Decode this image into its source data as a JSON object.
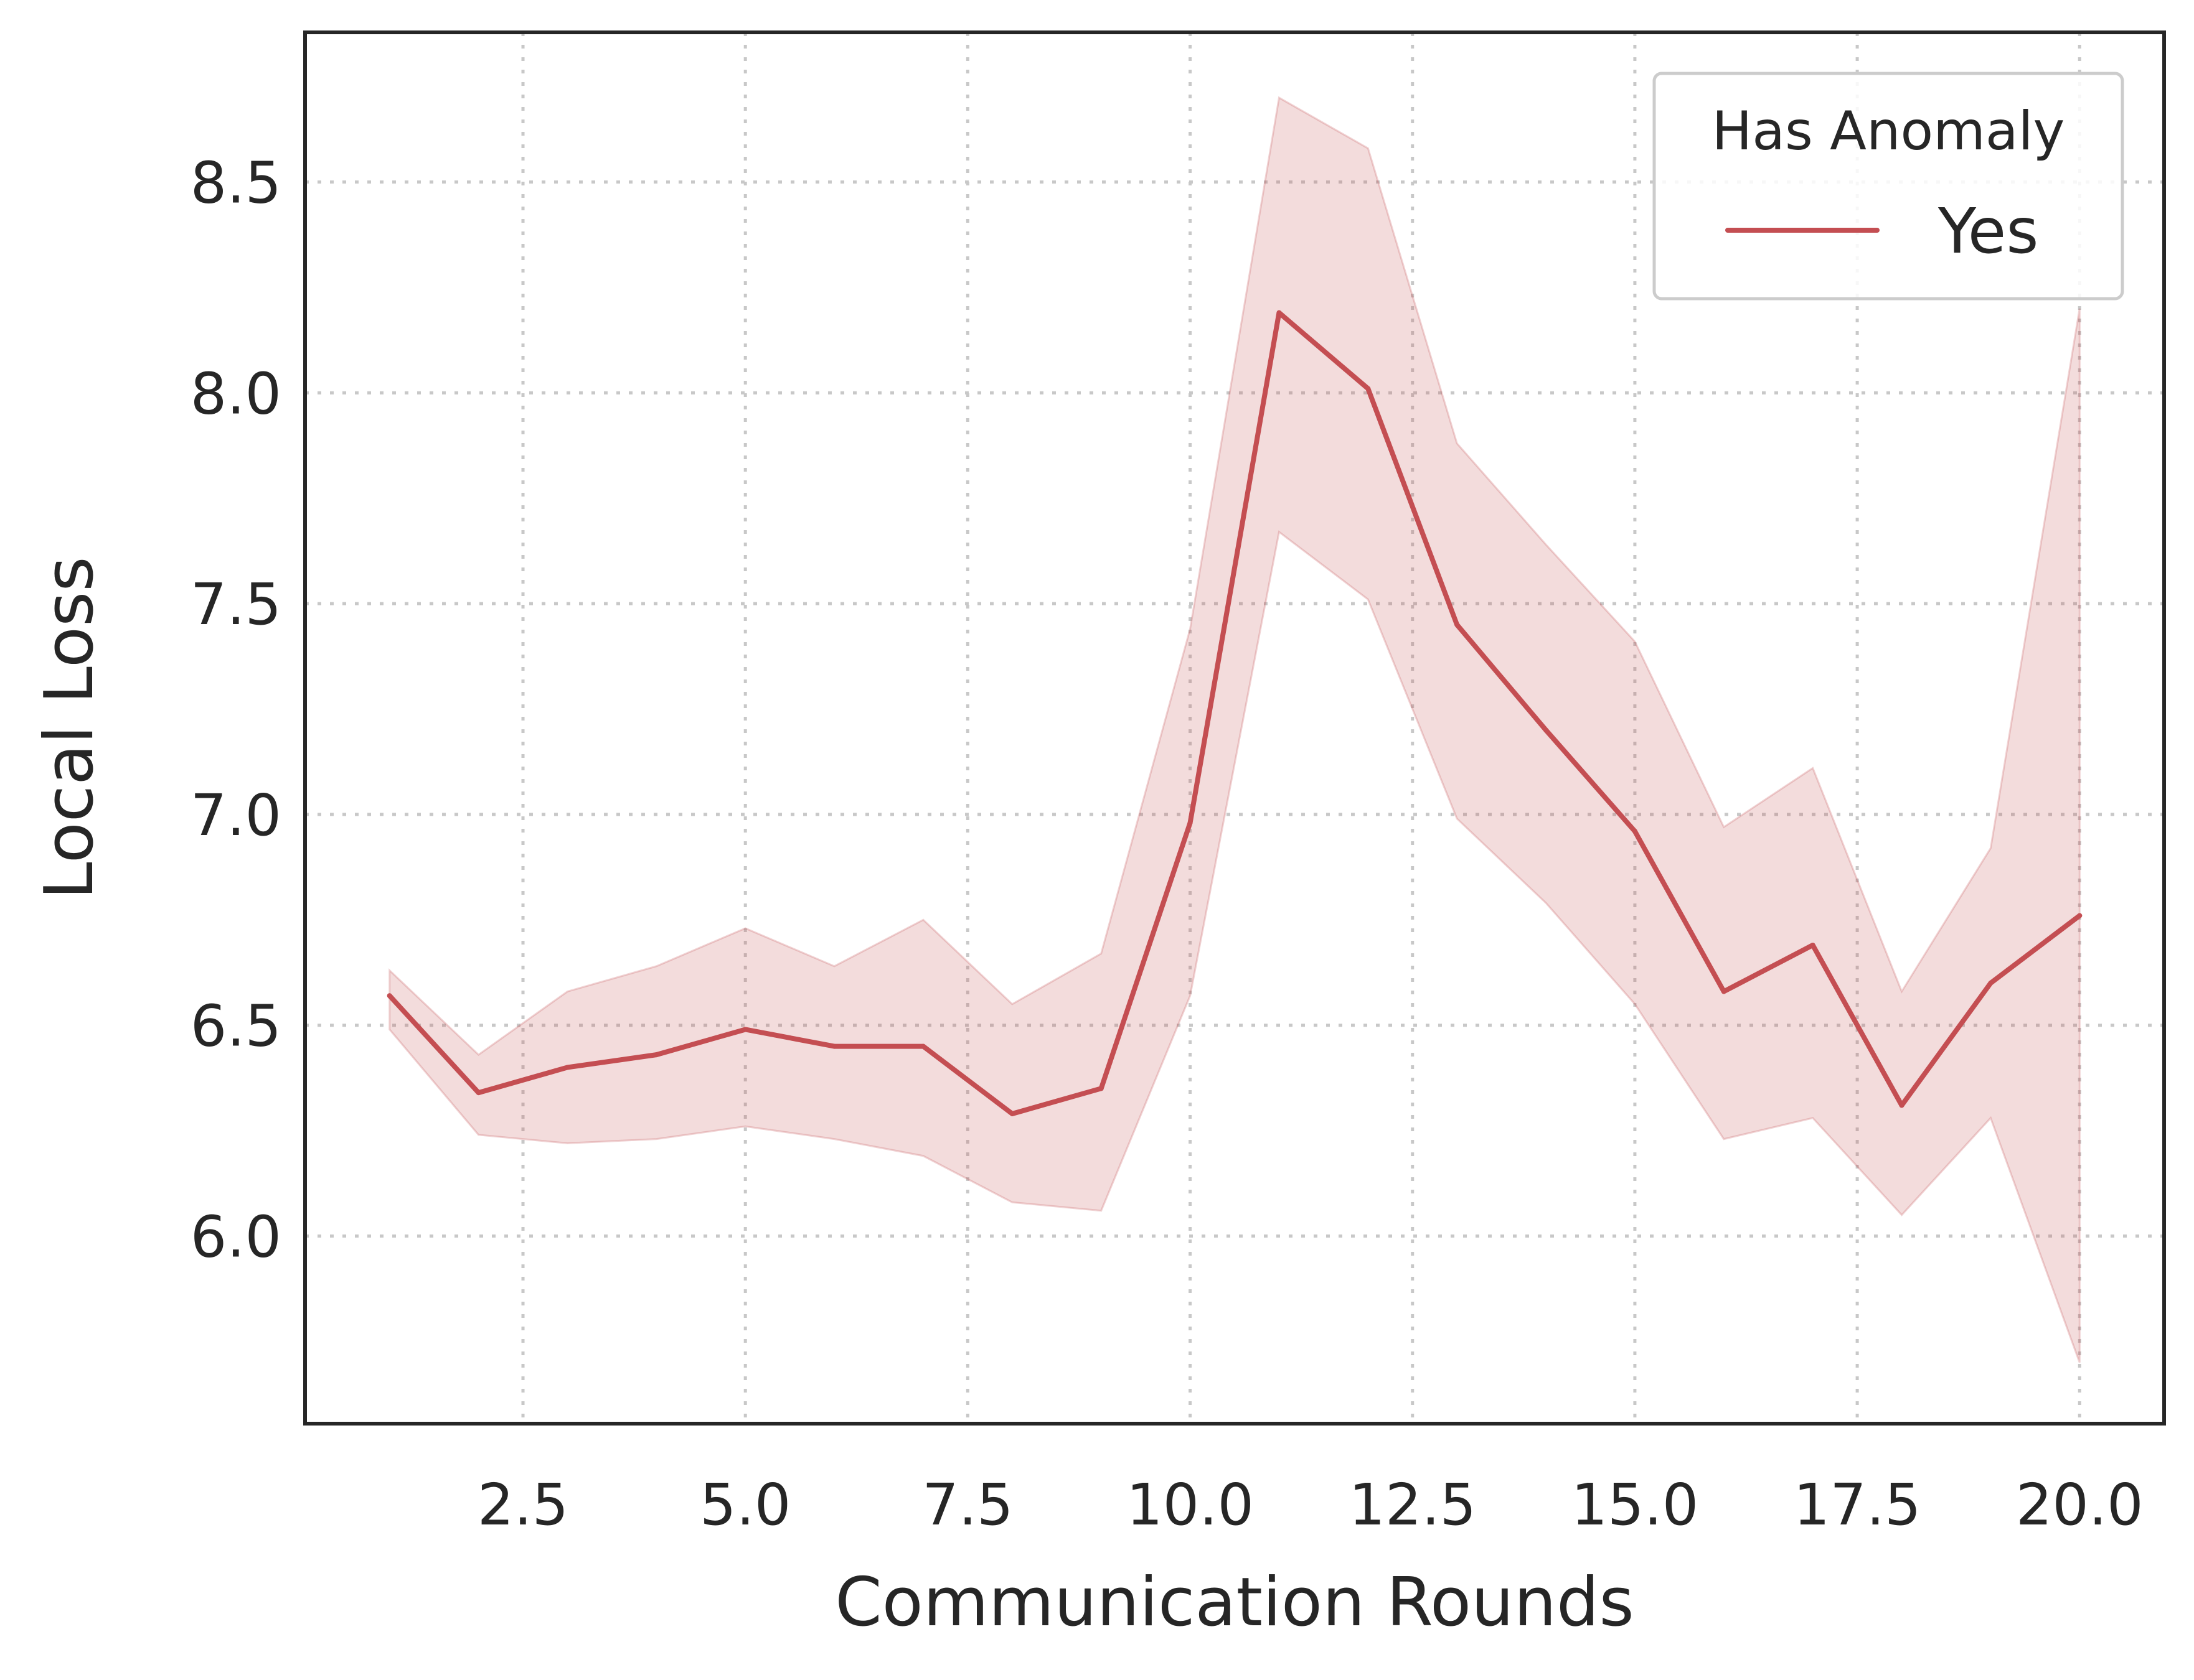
{
  "chart_data": {
    "type": "line",
    "xlabel": "Communication Rounds",
    "ylabel": "Local Loss",
    "xlim": [
      0.05,
      20.95
    ],
    "ylim": [
      5.555,
      8.855
    ],
    "x_ticks": [
      2.5,
      5.0,
      7.5,
      10.0,
      12.5,
      15.0,
      17.5,
      20.0
    ],
    "x_tick_labels": [
      "2.5",
      "5.0",
      "7.5",
      "10.0",
      "12.5",
      "15.0",
      "17.5",
      "20.0"
    ],
    "y_ticks": [
      6.0,
      6.5,
      7.0,
      7.5,
      8.0,
      8.5
    ],
    "y_tick_labels": [
      "6.0",
      "6.5",
      "7.0",
      "7.5",
      "8.0",
      "8.5"
    ],
    "grid": true,
    "legend": {
      "title": "Has Anomaly",
      "position": "top-right",
      "entries": [
        "Yes"
      ]
    },
    "series": [
      {
        "name": "Yes",
        "color": "#c44e52",
        "x": [
          1,
          2,
          3,
          4,
          5,
          6,
          7,
          8,
          9,
          10,
          11,
          12,
          13,
          14,
          15,
          16,
          17,
          18,
          19,
          20
        ],
        "y": [
          6.57,
          6.34,
          6.4,
          6.43,
          6.49,
          6.45,
          6.45,
          6.29,
          6.35,
          6.98,
          8.19,
          8.01,
          7.45,
          7.2,
          6.96,
          6.58,
          6.69,
          6.31,
          6.6,
          6.76
        ],
        "ci_lower": [
          6.49,
          6.24,
          6.22,
          6.23,
          6.26,
          6.23,
          6.19,
          6.08,
          6.06,
          6.57,
          7.67,
          7.51,
          6.99,
          6.79,
          6.55,
          6.23,
          6.28,
          6.05,
          6.28,
          5.7
        ],
        "ci_upper": [
          6.63,
          6.43,
          6.58,
          6.64,
          6.73,
          6.64,
          6.75,
          6.55,
          6.67,
          7.44,
          8.7,
          8.58,
          7.88,
          7.64,
          7.41,
          6.97,
          7.11,
          6.58,
          6.92,
          8.2
        ]
      }
    ]
  }
}
